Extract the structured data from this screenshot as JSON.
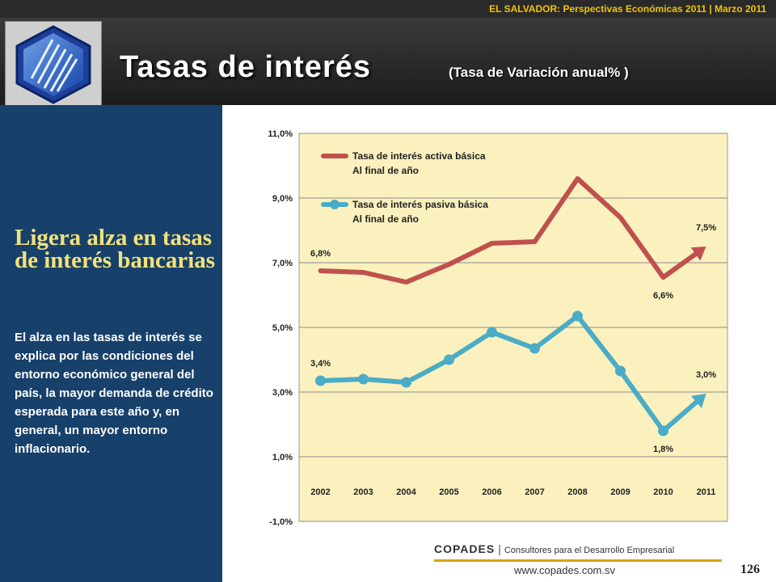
{
  "header": {
    "top_bar": "EL SALVADOR: Perspectivas Económicas 2011 | Marzo 2011",
    "title": "Tasas de interés",
    "subtitle": "(Tasa de Variación  anual% )"
  },
  "side": {
    "headline": "Ligera alza en tasas de interés bancarias",
    "body": "El alza en las tasas de interés se explica por las condiciones del entorno económico general del país, la mayor demanda de crédito esperada para este año y, en general,  un mayor entorno inflacionario."
  },
  "footer": {
    "brand": "COPADES",
    "separator": "|",
    "tagline": "Consultores para el Desarrollo Empresarial",
    "url": "www.copades.com.sv",
    "page": "126"
  },
  "colors": {
    "activa": "#c0504d",
    "pasiva": "#4bacc6",
    "plot_bg": "#faf1be",
    "side_bg": "#17406b"
  },
  "chart_data": {
    "type": "line",
    "categories": [
      "2002",
      "2003",
      "2004",
      "2005",
      "2006",
      "2007",
      "2008",
      "2009",
      "2010",
      "2011"
    ],
    "ylim": [
      -1,
      11
    ],
    "yticks": [
      "-1,0%",
      "1,0%",
      "3,0%",
      "5,0%",
      "7,0%",
      "9,0%",
      "11,0%"
    ],
    "grid": true,
    "legend_position": "top-left",
    "series": [
      {
        "name": "Tasa de interés activa básica Al final de año",
        "legend_lines": [
          "Tasa de interés activa básica",
          "Al final de año"
        ],
        "values": [
          6.75,
          6.7,
          6.4,
          6.95,
          7.6,
          7.65,
          9.6,
          8.4,
          6.55,
          7.5
        ],
        "arrow_to_last": true,
        "labels": [
          "6,8%",
          "6,6%",
          "7,5%"
        ]
      },
      {
        "name": "Tasa de interés pasiva básica Al final de año",
        "legend_lines": [
          "Tasa de interés pasiva básica",
          "Al final de año"
        ],
        "values": [
          3.35,
          3.4,
          3.3,
          4.0,
          4.85,
          4.35,
          5.35,
          3.65,
          1.8,
          2.95
        ],
        "arrow_to_last": true,
        "labels": [
          "3,4%",
          "1,8%",
          "3,0%"
        ]
      }
    ]
  }
}
